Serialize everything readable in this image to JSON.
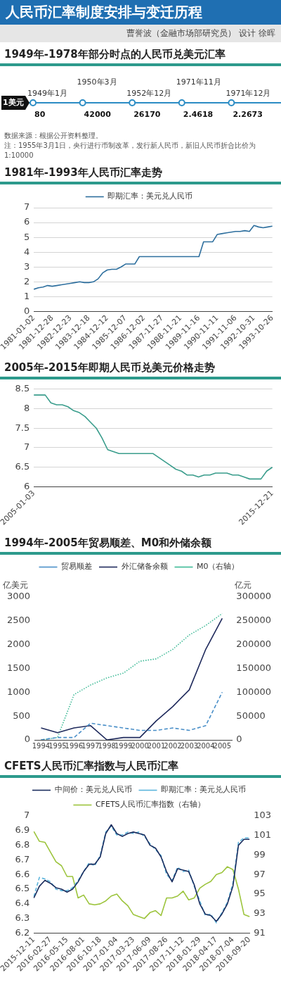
{
  "chart_data": [
    {
      "type": "other",
      "title": "人民币汇率制度安排与变迁历程",
      "subtitle": "1949年-1978年部分时点的人民币兑美元汇率",
      "ylabel": "1美元",
      "categories": [
        "1949年1月",
        "1950年3月",
        "1952年12月",
        "1971年11月",
        "1971年12月"
      ],
      "values": [
        80,
        42000,
        26170,
        2.4618,
        2.2673
      ],
      "color": "#2b8cc4",
      "data_labels": true,
      "annotations": [
        "曹誉波（金融市场部研究员） 设计 徐晖",
        "数据来源：根据公开资料整理。",
        "注：1955年3月1日，央行进行币制改革，发行新人民币，新旧人民币折合比价为1:10000"
      ]
    },
    {
      "type": "line",
      "title": "1981年-1993年人民币汇率走势",
      "categories": [
        "1981-01-02",
        null,
        null,
        null,
        "1981-12-28",
        null,
        null,
        null,
        "1982-12-23",
        null,
        null,
        null,
        "1983-12-18",
        null,
        null,
        null,
        "1984-12-12",
        null,
        null,
        null,
        "1985-12-07",
        null,
        null,
        null,
        "1986-12-02",
        null,
        null,
        null,
        "1987-11-27",
        null,
        null,
        null,
        "1988-11-21",
        null,
        null,
        null,
        "1989-11-16",
        null,
        null,
        null,
        "1990-11-11",
        null,
        null,
        null,
        "1991-11-06",
        null,
        null,
        null,
        "1992-10-31",
        null,
        null,
        null,
        "1993-10-26"
      ],
      "series": [
        {
          "name": "即期汇率：美元兑人民币",
          "color": "#2e6f9e",
          "values": [
            1.5,
            1.6,
            1.65,
            1.75,
            1.7,
            1.75,
            1.8,
            1.85,
            1.9,
            1.95,
            2.0,
            1.95,
            1.95,
            2.0,
            2.2,
            2.6,
            2.8,
            2.85,
            2.85,
            3.0,
            3.2,
            3.2,
            3.2,
            3.7,
            3.7,
            3.7,
            3.7,
            3.7,
            3.7,
            3.7,
            3.7,
            3.7,
            3.7,
            3.7,
            3.7,
            3.7,
            3.7,
            4.7,
            4.7,
            4.7,
            5.2,
            5.25,
            5.3,
            5.35,
            5.4,
            5.4,
            5.45,
            5.4,
            5.8,
            5.7,
            5.65,
            5.7,
            5.75
          ]
        }
      ],
      "ylim": [
        0,
        7
      ],
      "yticks": [
        0,
        1,
        2,
        3,
        4,
        5,
        6,
        7
      ],
      "grid": "y",
      "legend": "top"
    },
    {
      "type": "line",
      "title": "2005年-2015年即期人民币兑美元价格走势",
      "categories": [
        "2005-01-03",
        null,
        null,
        null,
        null,
        null,
        null,
        null,
        null,
        null,
        null,
        null,
        null,
        null,
        null,
        null,
        null,
        null,
        null,
        null,
        null,
        null,
        null,
        null,
        null,
        null,
        null,
        null,
        null,
        null,
        null,
        null,
        null,
        null,
        null,
        null,
        null,
        null,
        null,
        null,
        null,
        null,
        "2015-12-21"
      ],
      "series": [
        {
          "color": "#3a9d8c",
          "values": [
            8.35,
            8.35,
            8.35,
            8.15,
            8.1,
            8.1,
            8.05,
            7.95,
            7.9,
            7.8,
            7.65,
            7.5,
            7.25,
            6.95,
            6.9,
            6.85,
            6.85,
            6.85,
            6.85,
            6.85,
            6.85,
            6.85,
            6.75,
            6.65,
            6.55,
            6.45,
            6.4,
            6.3,
            6.3,
            6.25,
            6.3,
            6.3,
            6.35,
            6.35,
            6.35,
            6.3,
            6.3,
            6.25,
            6.2,
            6.2,
            6.2,
            6.4,
            6.5
          ]
        }
      ],
      "ylim": [
        6,
        8.5
      ],
      "yticks": [
        6,
        6.5,
        7,
        7.5,
        8,
        8.5
      ],
      "grid": "y"
    },
    {
      "type": "line",
      "title": "1994年-2005年贸易顺差、M0和外储余额",
      "ylabel": "亿美元",
      "y2label": "亿元",
      "x": [
        1994,
        1995,
        1996,
        1997,
        1998,
        1999,
        2000,
        2001,
        2002,
        2003,
        2004,
        2005
      ],
      "xlim": [
        1993.6,
        2005.6
      ],
      "xticks": [
        1994,
        1995,
        1996,
        1997,
        1998,
        1999,
        2000,
        2001,
        2002,
        2003,
        2004,
        2005
      ],
      "series": [
        {
          "name": "贸易顺差",
          "color": "#4a8fc8",
          "line_style": "dashed",
          "values": [
            0,
            50,
            50,
            350,
            300,
            250,
            200,
            200,
            250,
            200,
            300,
            1000
          ]
        },
        {
          "name": "外汇储备余额",
          "color": "#1f2a5c",
          "line_style": "solid",
          "values": [
            250,
            150,
            250,
            300,
            0,
            50,
            50,
            400,
            700,
            1050,
            1900,
            2550
          ]
        },
        {
          "name": "M0（右轴）",
          "color": "#3dba96",
          "line_style": "dotted",
          "axis": "y2",
          "values": [
            0,
            5000,
            95000,
            115000,
            130000,
            140000,
            165000,
            170000,
            190000,
            220000,
            240000,
            265000
          ]
        }
      ],
      "ylim": [
        0,
        3000
      ],
      "yticks": [
        0,
        500,
        1000,
        1500,
        2000,
        2500,
        3000
      ],
      "y2lim": [
        0,
        300000
      ],
      "y2ticks": [
        0,
        50000,
        100000,
        150000,
        200000,
        250000,
        300000
      ],
      "legend": "top"
    },
    {
      "type": "line",
      "title": "CFETS人民币汇率指数与人民币汇率",
      "categories": [
        "2015-12-11",
        null,
        null,
        "2016-02-27",
        null,
        null,
        "2016-05-15",
        null,
        null,
        "2016-08-01",
        null,
        null,
        "2016-10-18",
        null,
        null,
        "2017-01-04",
        null,
        null,
        "2017-03-23",
        null,
        null,
        "2017-06-09",
        null,
        null,
        "2017-08-26",
        null,
        null,
        "2017-11-12",
        null,
        null,
        "2018-01-29",
        null,
        null,
        "2018-04-17",
        null,
        null,
        "2018-07-04",
        null,
        null,
        "2018-09-20"
      ],
      "series": [
        {
          "name": "中间价：美元兑人民币",
          "color": "#1b2d5e",
          "line_style": "solid",
          "values": [
            6.44,
            6.52,
            6.56,
            6.54,
            6.51,
            6.5,
            6.48,
            6.5,
            6.55,
            6.62,
            6.67,
            6.67,
            6.72,
            6.88,
            6.94,
            6.88,
            6.86,
            6.88,
            6.89,
            6.88,
            6.87,
            6.8,
            6.78,
            6.72,
            6.62,
            6.55,
            6.64,
            6.63,
            6.62,
            6.53,
            6.4,
            6.33,
            6.32,
            6.28,
            6.33,
            6.4,
            6.52,
            6.8,
            6.84,
            6.84
          ]
        },
        {
          "name": "即期汇率：美元兑人民币",
          "color": "#5ab4dc",
          "line_style": "dashed",
          "values": [
            6.45,
            6.58,
            6.57,
            6.55,
            6.5,
            6.49,
            6.49,
            6.51,
            6.56,
            6.62,
            6.68,
            6.66,
            6.73,
            6.89,
            6.93,
            6.87,
            6.87,
            6.89,
            6.88,
            6.89,
            6.86,
            6.81,
            6.77,
            6.73,
            6.6,
            6.56,
            6.65,
            6.62,
            6.63,
            6.52,
            6.42,
            6.32,
            6.33,
            6.27,
            6.34,
            6.41,
            6.54,
            6.82,
            6.85,
            6.85
          ]
        },
        {
          "name": "CFETS人民币汇率指数（右轴）",
          "color": "#9cc43c",
          "line_style": "solid",
          "axis": "y2",
          "values": [
            101.4,
            100.4,
            100.3,
            99.3,
            98.3,
            97.9,
            96.8,
            96.8,
            94.6,
            94.9,
            94,
            93.9,
            94,
            94.3,
            94.8,
            95,
            94.3,
            93.8,
            92.9,
            92.7,
            92.5,
            93.1,
            93.3,
            92.8,
            94.6,
            94.6,
            94.8,
            95.3,
            94.4,
            94.6,
            95.6,
            96,
            96.3,
            97,
            97.2,
            97.8,
            97.5,
            95.5,
            92.9,
            92.7
          ]
        }
      ],
      "ylim": [
        6.2,
        7
      ],
      "yticks": [
        6.2,
        6.3,
        6.4,
        6.5,
        6.6,
        6.7,
        6.8,
        6.9,
        7
      ],
      "y2lim": [
        91,
        103
      ],
      "y2ticks": [
        91,
        93,
        95,
        97,
        99,
        101,
        103
      ],
      "legend": "top"
    }
  ]
}
